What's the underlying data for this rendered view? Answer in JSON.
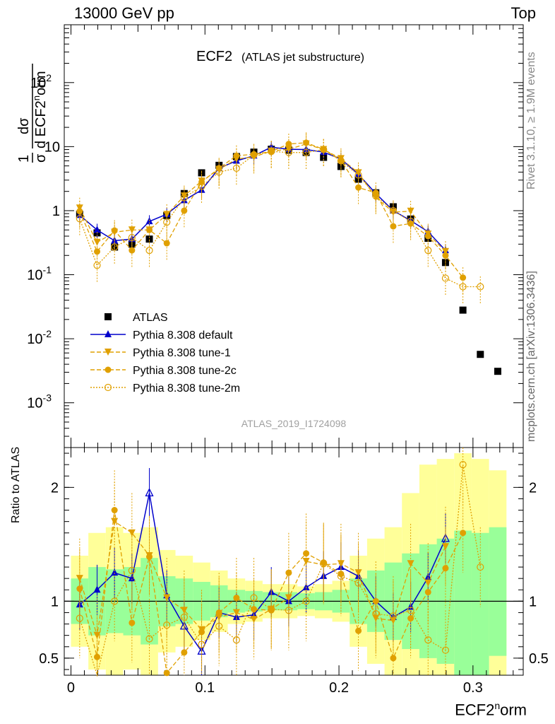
{
  "header": {
    "left": "13000 GeV pp",
    "right": "Top"
  },
  "side": {
    "rivet": "Rivet 3.1.10, ≥ 1.9M events",
    "mcplots": "mcplots.cern.ch [arXiv:1306.3436]"
  },
  "plot_title": {
    "main": "ECF2",
    "sub": "(ATLAS jet substructure)"
  },
  "watermark": "ATLAS_2019_I1724098",
  "xlabel": {
    "base": "ECF2",
    "sup": "n",
    "tail": "orm"
  },
  "ylabel_ratio": "Ratio to ATLAS",
  "ylabel_main": {
    "frac1_num": "1",
    "frac1_den": "σ",
    "frac2_num": "dσ",
    "frac2_den_a": "d ECF2",
    "frac2_den_sup": "n",
    "frac2_den_b": "orm"
  },
  "colors": {
    "atlas": "#000000",
    "default": "#0000cc",
    "tune": "#e0a000",
    "band_yellow": "#ffff99",
    "band_green": "#99ff99"
  },
  "chart_data": [
    {
      "type": "scatter",
      "panel": "main",
      "y_scale": "log",
      "xlim": [
        -0.005,
        0.3375
      ],
      "ylim": [
        0.0002,
        800
      ],
      "x_ticks": [
        "0",
        "0.1",
        "0.2",
        "0.3"
      ],
      "y_ticks": [
        "10^-3",
        "10^-2",
        "10^-1",
        "1",
        "10",
        "10^2"
      ],
      "legend_position": "lower-left",
      "series": [
        {
          "name": "ATLAS",
          "marker": "square",
          "x": [
            0.0065,
            0.0195,
            0.0325,
            0.0455,
            0.0585,
            0.0715,
            0.0845,
            0.0975,
            0.1105,
            0.1235,
            0.1365,
            0.1495,
            0.1625,
            0.1755,
            0.1885,
            0.2015,
            0.2145,
            0.2275,
            0.2405,
            0.2535,
            0.2665,
            0.2795,
            0.2925,
            0.3055,
            0.3185
          ],
          "y": [
            0.88,
            0.45,
            0.27,
            0.3,
            0.36,
            0.84,
            1.85,
            3.9,
            5.1,
            7.0,
            8.2,
            9.1,
            8.8,
            8.1,
            6.8,
            4.9,
            3.1,
            1.9,
            1.15,
            0.74,
            0.37,
            0.155,
            0.028,
            0.0057,
            0.0031
          ]
        },
        {
          "name": "Pythia 8.308 default",
          "marker": "triangle-up",
          "line": "solid",
          "x": [
            0.0065,
            0.0195,
            0.0325,
            0.0455,
            0.0585,
            0.0715,
            0.0845,
            0.0975,
            0.1105,
            0.1235,
            0.1365,
            0.1495,
            0.1625,
            0.1755,
            0.1885,
            0.2015,
            0.2145,
            0.2275,
            0.2405,
            0.2535,
            0.2665,
            0.2795
          ],
          "y": [
            0.85,
            0.5,
            0.34,
            0.36,
            0.68,
            0.88,
            1.45,
            2.1,
            4.6,
            6.0,
            7.2,
            9.8,
            9.1,
            9.0,
            8.2,
            6.4,
            3.7,
            1.85,
            1.0,
            0.7,
            0.47,
            0.24
          ]
        },
        {
          "name": "Pythia 8.308 tune-1",
          "marker": "triangle-down",
          "line": "dashed",
          "x": [
            0.0065,
            0.0195,
            0.0325,
            0.0455,
            0.0585,
            0.0715,
            0.0845,
            0.0975,
            0.1105,
            0.1235,
            0.1365,
            0.1495,
            0.1625,
            0.1755,
            0.1885,
            0.2015,
            0.2145,
            0.2275,
            0.2405,
            0.2535,
            0.2665,
            0.2795
          ],
          "y": [
            1.1,
            0.32,
            0.46,
            0.5,
            0.5,
            0.87,
            1.7,
            2.9,
            4.4,
            6.4,
            6.9,
            8.5,
            9.1,
            11.0,
            9.0,
            6.5,
            3.9,
            1.6,
            0.95,
            0.98,
            0.43,
            0.23
          ]
        },
        {
          "name": "Pythia 8.308 tune-2c",
          "marker": "circle",
          "line": "dashed",
          "x": [
            0.0065,
            0.0195,
            0.0325,
            0.0455,
            0.0585,
            0.0715,
            0.0845,
            0.0975,
            0.1105,
            0.1235,
            0.1365,
            0.1495,
            0.1625,
            0.1755,
            0.1885,
            0.2015,
            0.2145,
            0.2275,
            0.2405,
            0.2535,
            0.2665,
            0.2795,
            0.2925
          ],
          "y": [
            0.98,
            0.23,
            0.49,
            0.24,
            0.5,
            0.31,
            1.0,
            2.8,
            4.6,
            7.2,
            7.6,
            8.4,
            11.0,
            11.5,
            9.1,
            6.1,
            2.3,
            1.9,
            0.57,
            0.63,
            0.4,
            0.2,
            0.09
          ]
        },
        {
          "name": "Pythia 8.308 tune-2m",
          "marker": "open-circle",
          "line": "dotted",
          "x": [
            0.0065,
            0.0195,
            0.0325,
            0.0455,
            0.0585,
            0.0715,
            0.0845,
            0.0975,
            0.1105,
            0.1235,
            0.1365,
            0.1495,
            0.1625,
            0.1755,
            0.1885,
            0.2015,
            0.2145,
            0.2275,
            0.2405,
            0.2535,
            0.2665,
            0.2795,
            0.2925,
            0.3055
          ],
          "y": [
            0.75,
            0.14,
            0.27,
            0.38,
            0.24,
            0.66,
            1.6,
            2.4,
            4.0,
            4.6,
            7.4,
            8.4,
            8.1,
            8.1,
            9.0,
            6.0,
            3.6,
            1.7,
            1.0,
            0.68,
            0.24,
            0.088,
            0.065,
            0.065
          ]
        }
      ]
    },
    {
      "type": "scatter",
      "panel": "ratio",
      "xlim": [
        -0.005,
        0.3375
      ],
      "ylim": [
        0.35,
        2.35
      ],
      "y_ticks": [
        "0.5",
        "1",
        "2"
      ],
      "x_ticks": [
        "0",
        "0.1",
        "0.2",
        "0.3"
      ],
      "series": [
        {
          "name": "Pythia 8.308 default",
          "x": [
            0.0065,
            0.0195,
            0.0325,
            0.0455,
            0.0585,
            0.0715,
            0.0845,
            0.0975,
            0.1105,
            0.1235,
            0.1365,
            0.1495,
            0.1625,
            0.1755,
            0.1885,
            0.2015,
            0.2145,
            0.2275,
            0.2405,
            0.2535,
            0.2665,
            0.2795
          ],
          "y": [
            0.97,
            1.1,
            1.25,
            1.2,
            1.95,
            1.05,
            0.78,
            0.56,
            0.9,
            0.86,
            0.88,
            1.08,
            1.0,
            1.12,
            1.22,
            1.3,
            1.22,
            1.0,
            0.86,
            0.95,
            1.21,
            1.55
          ]
        },
        {
          "name": "Pythia 8.308 tune-1",
          "x": [
            0.0065,
            0.0195,
            0.0325,
            0.0455,
            0.0585,
            0.0715,
            0.0845,
            0.0975,
            0.1105,
            0.1235,
            0.1365,
            0.1495,
            0.1625,
            0.1755,
            0.1885,
            0.2015,
            0.2145,
            0.2275,
            0.2405,
            0.2535,
            0.2665,
            0.2795
          ],
          "y": [
            1.2,
            0.7,
            1.7,
            1.6,
            1.4,
            1.03,
            0.92,
            0.75,
            0.86,
            0.9,
            0.84,
            0.93,
            1.03,
            1.35,
            1.32,
            1.33,
            1.25,
            0.85,
            0.83,
            1.33,
            1.16,
            1.48
          ]
        },
        {
          "name": "Pythia 8.308 tune-2c",
          "x": [
            0.0065,
            0.0195,
            0.0325,
            0.0455,
            0.0585,
            0.0715,
            0.0845,
            0.0975,
            0.1105,
            0.1235,
            0.1365,
            0.1495,
            0.1625,
            0.1755,
            0.1885,
            0.2015,
            0.2145,
            0.2275,
            0.2405,
            0.2535,
            0.2665,
            0.2795,
            0.2925
          ],
          "y": [
            1.11,
            0.51,
            1.8,
            0.81,
            1.39,
            0.37,
            0.55,
            0.73,
            0.9,
            1.03,
            0.93,
            0.92,
            1.25,
            1.42,
            1.34,
            1.24,
            0.74,
            1.0,
            0.5,
            0.85,
            1.08,
            1.29,
            1.6
          ]
        },
        {
          "name": "Pythia 8.308 tune-2m",
          "x": [
            0.0065,
            0.0195,
            0.0325,
            0.0455,
            0.0585,
            0.0715,
            0.0845,
            0.0975,
            0.1105,
            0.1235,
            0.1365,
            0.1495,
            0.1625,
            0.1755,
            0.1885,
            0.2015,
            0.2145,
            0.2275,
            0.2405,
            0.2535,
            0.2665,
            0.2795,
            0.2925,
            0.3055
          ],
          "y": [
            0.85,
            0.31,
            1.0,
            1.27,
            0.67,
            0.79,
            0.86,
            0.62,
            0.78,
            0.66,
            1.03,
            0.93,
            0.92,
            1.0,
            1.33,
            1.22,
            1.16,
            0.89,
            0.87,
            0.92,
            0.66,
            0.57,
            2.2,
            1.3
          ]
        }
      ],
      "bands": {
        "x_edges": [
          0.0,
          0.013,
          0.026,
          0.039,
          0.052,
          0.065,
          0.078,
          0.091,
          0.104,
          0.117,
          0.13,
          0.143,
          0.156,
          0.169,
          0.182,
          0.195,
          0.208,
          0.221,
          0.234,
          0.247,
          0.26,
          0.273,
          0.286,
          0.299,
          0.312,
          0.325
        ],
        "green_lo": [
          0.8,
          0.7,
          0.72,
          0.7,
          0.62,
          0.78,
          0.8,
          0.83,
          0.86,
          0.9,
          0.91,
          0.92,
          0.92,
          0.93,
          0.92,
          0.9,
          0.8,
          0.73,
          0.66,
          0.58,
          0.5,
          0.45,
          0.35,
          0.35,
          0.52
        ],
        "green_hi": [
          1.2,
          1.3,
          1.28,
          1.3,
          1.38,
          1.22,
          1.2,
          1.17,
          1.14,
          1.1,
          1.09,
          1.08,
          1.08,
          1.07,
          1.08,
          1.1,
          1.2,
          1.27,
          1.34,
          1.42,
          1.5,
          1.55,
          1.62,
          1.6,
          1.65
        ],
        "yellow_lo": [
          0.6,
          0.4,
          0.35,
          0.4,
          0.35,
          0.55,
          0.6,
          0.66,
          0.73,
          0.8,
          0.82,
          0.85,
          0.85,
          0.87,
          0.85,
          0.82,
          0.6,
          0.45,
          0.35,
          0.35,
          0.35,
          0.35,
          0.35,
          0.35,
          0.35
        ],
        "yellow_hi": [
          1.4,
          1.6,
          1.65,
          1.6,
          1.65,
          1.45,
          1.4,
          1.34,
          1.27,
          1.2,
          1.18,
          1.15,
          1.15,
          1.13,
          1.15,
          1.18,
          1.4,
          1.55,
          1.65,
          1.95,
          2.2,
          2.25,
          2.3,
          2.25,
          2.15
        ]
      }
    }
  ]
}
